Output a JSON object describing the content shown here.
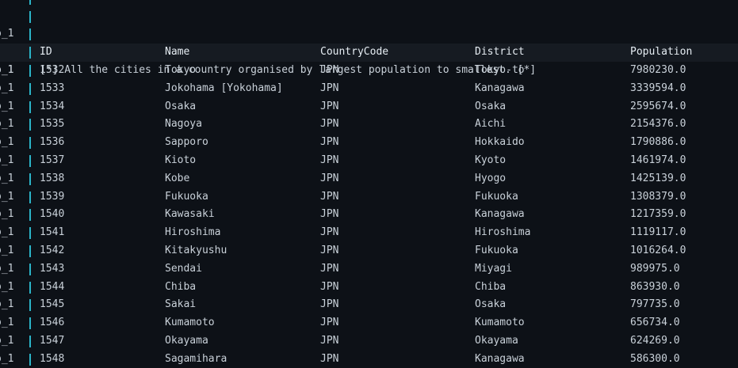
{
  "prefix": "o_1",
  "message": "[*] All the cities in a country organised by largest population to smallest. [*]",
  "columns": [
    "ID",
    "Name",
    "CountryCode",
    "District",
    "Population"
  ],
  "rows": [
    [
      "1532",
      "Tokyo",
      "JPN",
      "Tokyo-to",
      "7980230.0"
    ],
    [
      "1533",
      "Jokohama [Yokohama]",
      "JPN",
      "Kanagawa",
      "3339594.0"
    ],
    [
      "1534",
      "Osaka",
      "JPN",
      "Osaka",
      "2595674.0"
    ],
    [
      "1535",
      "Nagoya",
      "JPN",
      "Aichi",
      "2154376.0"
    ],
    [
      "1536",
      "Sapporo",
      "JPN",
      "Hokkaido",
      "1790886.0"
    ],
    [
      "1537",
      "Kioto",
      "JPN",
      "Kyoto",
      "1461974.0"
    ],
    [
      "1538",
      "Kobe",
      "JPN",
      "Hyogo",
      "1425139.0"
    ],
    [
      "1539",
      "Fukuoka",
      "JPN",
      "Fukuoka",
      "1308379.0"
    ],
    [
      "1540",
      "Kawasaki",
      "JPN",
      "Kanagawa",
      "1217359.0"
    ],
    [
      "1541",
      "Hiroshima",
      "JPN",
      "Hiroshima",
      "1119117.0"
    ],
    [
      "1542",
      "Kitakyushu",
      "JPN",
      "Fukuoka",
      "1016264.0"
    ],
    [
      "1543",
      "Sendai",
      "JPN",
      "Miyagi",
      "989975.0"
    ],
    [
      "1544",
      "Chiba",
      "JPN",
      "Chiba",
      "863930.0"
    ],
    [
      "1545",
      "Sakai",
      "JPN",
      "Osaka",
      "797735.0"
    ],
    [
      "1546",
      "Kumamoto",
      "JPN",
      "Kumamoto",
      "656734.0"
    ],
    [
      "1547",
      "Okayama",
      "JPN",
      "Okayama",
      "624269.0"
    ],
    [
      "1548",
      "Sagamihara",
      "JPN",
      "Kanagawa",
      "586300.0"
    ]
  ]
}
